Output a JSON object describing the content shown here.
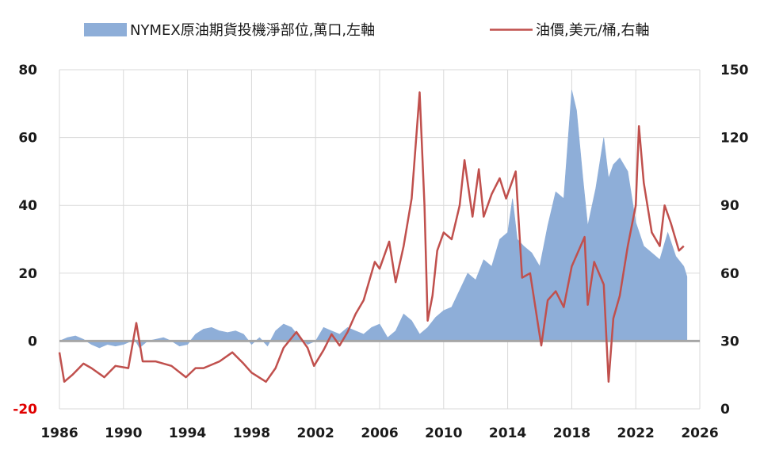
{
  "chart_data": {
    "type": "area",
    "title": "",
    "xlabel": "",
    "ylabel": "",
    "xlim": [
      1986,
      2026
    ],
    "ylim": [
      -20,
      80
    ],
    "y2lim": [
      0,
      150
    ],
    "grid": true,
    "legend_position": "top",
    "x_ticks": [
      "1986",
      "1990",
      "1994",
      "1998",
      "2002",
      "2006",
      "2010",
      "2014",
      "2018",
      "2022",
      "2026"
    ],
    "y_left_ticks": [
      "-20",
      "0",
      "20",
      "40",
      "60",
      "80"
    ],
    "y_right_ticks": [
      "0",
      "30",
      "60",
      "90",
      "120",
      "150"
    ],
    "colors": {
      "bars": "#8eaed8",
      "line": "#c0504d",
      "negative_tick": "#e00000",
      "grid": "#d9d9d9",
      "zero_line": "#a6a6a6"
    },
    "series": [
      {
        "name": "NYMEX原油期貨投機淨部位,萬口,左軸",
        "axis": "left",
        "kind": "area",
        "points": [
          [
            1986.0,
            0
          ],
          [
            1986.5,
            1
          ],
          [
            1987.0,
            1.5
          ],
          [
            1987.5,
            0.5
          ],
          [
            1988.0,
            -1
          ],
          [
            1988.5,
            -2
          ],
          [
            1989.0,
            -1
          ],
          [
            1989.5,
            -1.5
          ],
          [
            1990.0,
            -1
          ],
          [
            1990.5,
            0
          ],
          [
            1990.7,
            0.5
          ],
          [
            1991.0,
            -2
          ],
          [
            1991.5,
            0
          ],
          [
            1992.0,
            0.5
          ],
          [
            1992.5,
            1
          ],
          [
            1993.0,
            0
          ],
          [
            1993.5,
            -1.5
          ],
          [
            1994.0,
            -1
          ],
          [
            1994.5,
            2
          ],
          [
            1995.0,
            3.5
          ],
          [
            1995.5,
            4
          ],
          [
            1996.0,
            3
          ],
          [
            1996.5,
            2.5
          ],
          [
            1997.0,
            3
          ],
          [
            1997.5,
            2
          ],
          [
            1998.0,
            -1
          ],
          [
            1998.5,
            1
          ],
          [
            1999.0,
            -1.5
          ],
          [
            1999.5,
            3
          ],
          [
            2000.0,
            5
          ],
          [
            2000.5,
            4
          ],
          [
            2001.0,
            1
          ],
          [
            2001.5,
            -1
          ],
          [
            2002.0,
            0
          ],
          [
            2002.5,
            4
          ],
          [
            2003.0,
            3
          ],
          [
            2003.5,
            2
          ],
          [
            2004.0,
            4
          ],
          [
            2004.5,
            3
          ],
          [
            2005.0,
            2
          ],
          [
            2005.5,
            4
          ],
          [
            2006.0,
            5
          ],
          [
            2006.5,
            1
          ],
          [
            2007.0,
            3
          ],
          [
            2007.5,
            8
          ],
          [
            2008.0,
            6
          ],
          [
            2008.5,
            2
          ],
          [
            2009.0,
            4
          ],
          [
            2009.5,
            7
          ],
          [
            2010.0,
            9
          ],
          [
            2010.5,
            10
          ],
          [
            2011.0,
            15
          ],
          [
            2011.5,
            20
          ],
          [
            2012.0,
            18
          ],
          [
            2012.5,
            24
          ],
          [
            2013.0,
            22
          ],
          [
            2013.5,
            30
          ],
          [
            2014.0,
            32
          ],
          [
            2014.3,
            42
          ],
          [
            2014.6,
            30
          ],
          [
            2015.0,
            28
          ],
          [
            2015.5,
            26
          ],
          [
            2016.0,
            22
          ],
          [
            2016.5,
            34
          ],
          [
            2017.0,
            44
          ],
          [
            2017.5,
            42
          ],
          [
            2018.0,
            74
          ],
          [
            2018.3,
            68
          ],
          [
            2018.7,
            48
          ],
          [
            2019.0,
            34
          ],
          [
            2019.5,
            45
          ],
          [
            2020.0,
            60
          ],
          [
            2020.3,
            48
          ],
          [
            2020.6,
            52
          ],
          [
            2021.0,
            54
          ],
          [
            2021.5,
            50
          ],
          [
            2022.0,
            35
          ],
          [
            2022.5,
            28
          ],
          [
            2023.0,
            26
          ],
          [
            2023.5,
            24
          ],
          [
            2024.0,
            32
          ],
          [
            2024.5,
            25
          ],
          [
            2025.0,
            22
          ],
          [
            2025.2,
            19
          ]
        ]
      },
      {
        "name": "油價,美元/桶,右軸",
        "axis": "right",
        "kind": "line",
        "points": [
          [
            1986.0,
            25
          ],
          [
            1986.3,
            12
          ],
          [
            1986.8,
            15
          ],
          [
            1987.5,
            20
          ],
          [
            1988.0,
            18
          ],
          [
            1988.8,
            14
          ],
          [
            1989.5,
            19
          ],
          [
            1990.3,
            18
          ],
          [
            1990.8,
            38
          ],
          [
            1991.2,
            21
          ],
          [
            1992.0,
            21
          ],
          [
            1993.0,
            19
          ],
          [
            1993.9,
            14
          ],
          [
            1994.5,
            18
          ],
          [
            1995.0,
            18
          ],
          [
            1996.0,
            21
          ],
          [
            1996.8,
            25
          ],
          [
            1997.5,
            20
          ],
          [
            1998.0,
            16
          ],
          [
            1998.9,
            12
          ],
          [
            1999.5,
            18
          ],
          [
            2000.0,
            27
          ],
          [
            2000.8,
            34
          ],
          [
            2001.5,
            27
          ],
          [
            2001.9,
            19
          ],
          [
            2002.5,
            26
          ],
          [
            2003.0,
            33
          ],
          [
            2003.5,
            28
          ],
          [
            2004.0,
            34
          ],
          [
            2004.5,
            42
          ],
          [
            2005.0,
            48
          ],
          [
            2005.7,
            65
          ],
          [
            2006.0,
            62
          ],
          [
            2006.6,
            74
          ],
          [
            2007.0,
            56
          ],
          [
            2007.5,
            72
          ],
          [
            2008.0,
            93
          ],
          [
            2008.5,
            140
          ],
          [
            2008.8,
            90
          ],
          [
            2009.0,
            39
          ],
          [
            2009.3,
            50
          ],
          [
            2009.6,
            70
          ],
          [
            2010.0,
            78
          ],
          [
            2010.5,
            75
          ],
          [
            2011.0,
            90
          ],
          [
            2011.3,
            110
          ],
          [
            2011.8,
            85
          ],
          [
            2012.2,
            106
          ],
          [
            2012.5,
            85
          ],
          [
            2013.0,
            95
          ],
          [
            2013.5,
            102
          ],
          [
            2013.9,
            93
          ],
          [
            2014.5,
            105
          ],
          [
            2014.9,
            58
          ],
          [
            2015.4,
            60
          ],
          [
            2015.9,
            37
          ],
          [
            2016.1,
            28
          ],
          [
            2016.5,
            48
          ],
          [
            2017.0,
            52
          ],
          [
            2017.5,
            45
          ],
          [
            2018.0,
            63
          ],
          [
            2018.8,
            76
          ],
          [
            2019.0,
            46
          ],
          [
            2019.4,
            65
          ],
          [
            2020.0,
            55
          ],
          [
            2020.3,
            12
          ],
          [
            2020.6,
            40
          ],
          [
            2021.0,
            50
          ],
          [
            2021.5,
            72
          ],
          [
            2022.0,
            90
          ],
          [
            2022.2,
            125
          ],
          [
            2022.5,
            100
          ],
          [
            2023.0,
            78
          ],
          [
            2023.5,
            72
          ],
          [
            2023.8,
            90
          ],
          [
            2024.2,
            82
          ],
          [
            2024.7,
            70
          ],
          [
            2025.0,
            72
          ]
        ]
      }
    ]
  }
}
